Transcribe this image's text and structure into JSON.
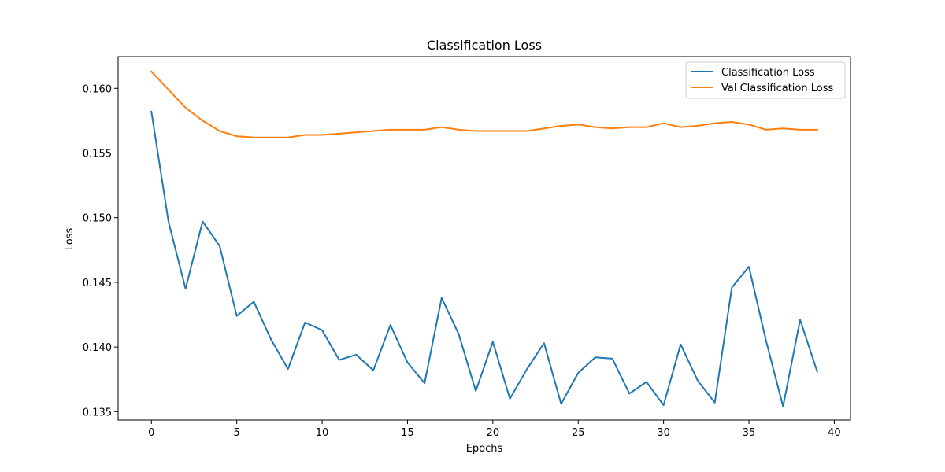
{
  "chart_data": {
    "type": "line",
    "title": "Classification Loss",
    "xlabel": "Epochs",
    "ylabel": "Loss",
    "xlim": [
      -1.95,
      40.95
    ],
    "ylim": [
      0.13435,
      0.16245
    ],
    "xticks": [
      0,
      5,
      10,
      15,
      20,
      25,
      30,
      35,
      40
    ],
    "yticks": [
      0.135,
      0.14,
      0.145,
      0.15,
      0.155,
      0.16
    ],
    "ytick_labels": [
      "0.135",
      "0.140",
      "0.145",
      "0.150",
      "0.155",
      "0.160"
    ],
    "xtick_labels": [
      "0",
      "5",
      "10",
      "15",
      "20",
      "25",
      "30",
      "35",
      "40"
    ],
    "grid": false,
    "legend_position": "top-right",
    "x": [
      0,
      1,
      2,
      3,
      4,
      5,
      6,
      7,
      8,
      9,
      10,
      11,
      12,
      13,
      14,
      15,
      16,
      17,
      18,
      19,
      20,
      21,
      22,
      23,
      24,
      25,
      26,
      27,
      28,
      29,
      30,
      31,
      32,
      33,
      34,
      35,
      36,
      37,
      38,
      39
    ],
    "series": [
      {
        "name": "Classification Loss",
        "color": "#1f77b4",
        "values": [
          0.1582,
          0.1497,
          0.1445,
          0.1497,
          0.1478,
          0.1424,
          0.1435,
          0.1406,
          0.1383,
          0.1419,
          0.1413,
          0.139,
          0.1394,
          0.1382,
          0.1417,
          0.1388,
          0.1372,
          0.1438,
          0.141,
          0.1366,
          0.1404,
          0.136,
          0.1383,
          0.1403,
          0.1356,
          0.138,
          0.1392,
          0.1391,
          0.1364,
          0.1373,
          0.1355,
          0.1402,
          0.1374,
          0.1357,
          0.1446,
          0.1462,
          0.1405,
          0.1354,
          0.1421,
          0.1381
        ]
      },
      {
        "name": "Val Classification Loss",
        "color": "#ff7f0e",
        "values": [
          0.1613,
          0.1599,
          0.1585,
          0.1575,
          0.1567,
          0.1563,
          0.1562,
          0.1562,
          0.1562,
          0.1564,
          0.1564,
          0.1565,
          0.1566,
          0.1567,
          0.1568,
          0.1568,
          0.1568,
          0.157,
          0.1568,
          0.1567,
          0.1567,
          0.1567,
          0.1567,
          0.1569,
          0.1571,
          0.1572,
          0.157,
          0.1569,
          0.157,
          0.157,
          0.1573,
          0.157,
          0.1571,
          0.1573,
          0.1574,
          0.1572,
          0.1568,
          0.1569,
          0.1568,
          0.1568
        ]
      }
    ]
  }
}
